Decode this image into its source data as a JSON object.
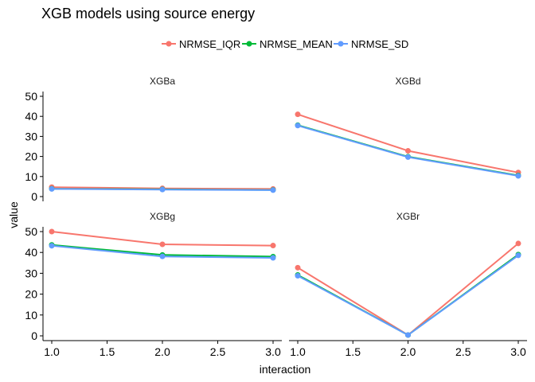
{
  "colors": {
    "NRMSE_IQR": "#F8766D",
    "NRMSE_MEAN": "#00BA38",
    "NRMSE_SD": "#619CFF"
  },
  "chart_data": {
    "type": "line",
    "title": "XGB models using source energy",
    "xlabel": "interaction",
    "ylabel": "value",
    "x": [
      1.0,
      2.0,
      3.0
    ],
    "xlim": [
      1.0,
      3.0
    ],
    "ylim": [
      0,
      50
    ],
    "x_ticks": [
      "1.0",
      "1.5",
      "2.0",
      "2.5",
      "3.0"
    ],
    "y_ticks": [
      "0",
      "10",
      "20",
      "30",
      "40",
      "50"
    ],
    "legend_position": "top",
    "grid": false,
    "legend": [
      "NRMSE_IQR",
      "NRMSE_MEAN",
      "NRMSE_SD"
    ],
    "panels": [
      {
        "name": "XGBa",
        "series": [
          {
            "name": "NRMSE_IQR",
            "values": [
              4.7,
              4.1,
              3.8
            ]
          },
          {
            "name": "NRMSE_MEAN",
            "values": [
              3.9,
              3.6,
              3.3
            ]
          },
          {
            "name": "NRMSE_SD",
            "values": [
              3.8,
              3.5,
              3.2
            ]
          }
        ]
      },
      {
        "name": "XGBd",
        "series": [
          {
            "name": "NRMSE_IQR",
            "values": [
              41.0,
              22.8,
              12.0
            ]
          },
          {
            "name": "NRMSE_MEAN",
            "values": [
              35.6,
              19.9,
              10.5
            ]
          },
          {
            "name": "NRMSE_SD",
            "values": [
              35.4,
              19.7,
              10.3
            ]
          }
        ]
      },
      {
        "name": "XGBg",
        "series": [
          {
            "name": "NRMSE_IQR",
            "values": [
              50.0,
              43.9,
              43.3
            ]
          },
          {
            "name": "NRMSE_MEAN",
            "values": [
              43.6,
              38.8,
              38.0
            ]
          },
          {
            "name": "NRMSE_SD",
            "values": [
              43.2,
              38.1,
              37.4
            ]
          }
        ]
      },
      {
        "name": "XGBr",
        "series": [
          {
            "name": "NRMSE_IQR",
            "values": [
              32.7,
              0.4,
              44.3
            ]
          },
          {
            "name": "NRMSE_MEAN",
            "values": [
              29.2,
              0.4,
              39.0
            ]
          },
          {
            "name": "NRMSE_SD",
            "values": [
              28.8,
              0.4,
              38.6
            ]
          }
        ]
      }
    ]
  }
}
